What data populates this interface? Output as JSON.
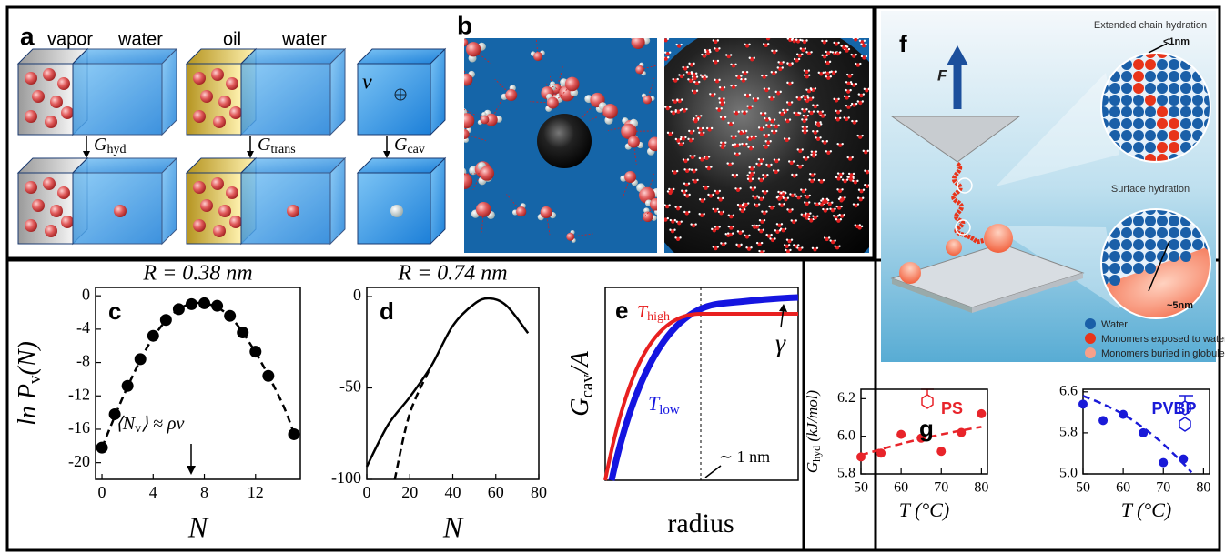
{
  "panel_a": {
    "label": "a",
    "headers": [
      "vapor",
      "water",
      "oil",
      "water"
    ],
    "volume": "v",
    "transfers": [
      {
        "main": "G",
        "sub": "hyd"
      },
      {
        "main": "G",
        "sub": "trans"
      },
      {
        "main": "G",
        "sub": "cav"
      }
    ]
  },
  "panel_b": {
    "label": "b"
  },
  "panel_e": {
    "label": "e",
    "t_high": {
      "main": "T",
      "sub": "high"
    },
    "t_low": {
      "main": "T",
      "sub": "low"
    },
    "gamma": "γ",
    "length_note": "∼ 1 nm",
    "ylabel": {
      "main": "G",
      "sub": "cav",
      "post": "/A"
    },
    "xlabel": "radius"
  },
  "panel_f": {
    "label": "f",
    "force": "F",
    "extended": "Extended chain hydration",
    "extended_size": "<1nm",
    "surface": "Surface hydration",
    "surface_size": "~5nm",
    "legend": [
      "Water",
      "Monomers exposed to water",
      "Monomers buried in globule"
    ]
  },
  "chart_data": [
    {
      "type": "line",
      "panel": "c",
      "title": "R = 0.38 nm",
      "xlabel": "N",
      "ylabel": {
        "main": "ln P",
        "sub": "v",
        "post": "(N)"
      },
      "annotation": {
        "main": "⟨N",
        "sub": "v",
        "post": "⟩ ≈ ρv"
      },
      "xlim": [
        -0.5,
        15.5
      ],
      "ylim": [
        -22,
        1
      ],
      "xticks": [
        0,
        4,
        8,
        12
      ],
      "yticks": [
        0,
        -4,
        -8,
        -12,
        -16,
        -20
      ],
      "series": [
        {
          "color": "#000000",
          "style": "dashed",
          "x": [
            0,
            2,
            4,
            6,
            8,
            10,
            12,
            14,
            15
          ],
          "values": [
            -18.2,
            -10.9,
            -5.0,
            -1.6,
            -0.9,
            -2.5,
            -6.8,
            -12.6,
            -16.5
          ]
        },
        {
          "color": "#000000",
          "style": "markers",
          "x": [
            0,
            1,
            2,
            3,
            4,
            5,
            6,
            7,
            8,
            9,
            10,
            11,
            12,
            13,
            15
          ],
          "values": [
            -18.2,
            -14.2,
            -10.8,
            -7.6,
            -4.8,
            -2.9,
            -1.6,
            -1.0,
            -0.9,
            -1.2,
            -2.4,
            -4.4,
            -6.7,
            -9.6,
            -16.6
          ]
        }
      ]
    },
    {
      "type": "line",
      "panel": "d",
      "title": "R = 0.74 nm",
      "xlabel": "N",
      "xlim": [
        0,
        80
      ],
      "ylim": [
        -100,
        5
      ],
      "xticks": [
        0,
        20,
        40,
        60,
        80
      ],
      "yticks": [
        0,
        -50,
        -100
      ],
      "series": [
        {
          "color": "#000000",
          "style": "solid",
          "x": [
            0,
            10,
            20,
            30,
            40,
            50,
            57,
            65,
            75
          ],
          "values": [
            -93,
            -70,
            -55,
            -38,
            -16,
            -4,
            -1,
            -5,
            -20
          ]
        },
        {
          "color": "#000000",
          "style": "dashed",
          "x": [
            13,
            20,
            30
          ],
          "values": [
            -100,
            -64,
            -38
          ]
        }
      ]
    },
    {
      "type": "scatter",
      "panel": "g",
      "xlabel": "T (°C)",
      "ylabel": {
        "main": "G",
        "sub": "hyd",
        "post": " (kJ/mol)"
      },
      "xlim": [
        50,
        81.5
      ],
      "ylim": [
        5.8,
        6.25
      ],
      "xticks": [
        50,
        60,
        70,
        80
      ],
      "yticks": [
        5.8,
        {
          "value": 6,
          "label": "6.0"
        },
        6.2
      ],
      "series": [
        {
          "color": "#e8242a",
          "style": "dashed",
          "x": [
            50,
            60,
            70,
            80
          ],
          "values": [
            5.9,
            5.96,
            6.01,
            6.05
          ]
        },
        {
          "name": "PS",
          "color": "#e8242a",
          "style": "markers",
          "x": [
            50,
            55,
            60,
            65,
            70,
            75,
            80
          ],
          "values": [
            5.89,
            5.91,
            6.01,
            5.99,
            5.92,
            6.02,
            6.12
          ]
        }
      ]
    },
    {
      "type": "scatter",
      "xlabel": "T (°C)",
      "xlim": [
        50,
        81.5
      ],
      "ylim": [
        5.0,
        6.65
      ],
      "xticks": [
        50,
        60,
        70,
        80
      ],
      "yticks": [
        {
          "value": 5,
          "label": "5.0"
        },
        5.8,
        6.6
      ],
      "series": [
        {
          "color": "#1a1ad8",
          "style": "dashed",
          "x": [
            50,
            55,
            60,
            65,
            70,
            75,
            77
          ],
          "values": [
            6.52,
            6.36,
            6.16,
            5.9,
            5.58,
            5.2,
            5.03
          ]
        },
        {
          "name": "PVBP",
          "color": "#1a1ad8",
          "style": "markers",
          "x": [
            50,
            55,
            60,
            65,
            70,
            75
          ],
          "values": [
            6.36,
            6.04,
            6.16,
            5.8,
            5.22,
            5.29
          ]
        }
      ]
    }
  ]
}
